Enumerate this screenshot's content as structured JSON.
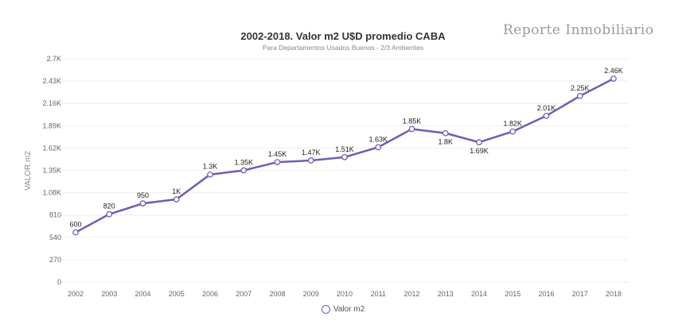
{
  "brand": "Reporte Inmobiliario",
  "chart_data": {
    "type": "line",
    "title": "2002-2018. Valor m2 U$D promedio CABA",
    "subtitle": "Para Departamentos Usados Buenos - 2/3 Ambientes",
    "xlabel": "",
    "ylabel": "VALOR m2",
    "ylim": [
      0,
      2700
    ],
    "yticks": [
      0,
      270,
      540,
      810,
      1080,
      1350,
      1620,
      1890,
      2160,
      2430,
      2700
    ],
    "ytick_labels": [
      "0",
      "270",
      "540",
      "810",
      "1.08K",
      "1.35K",
      "1.62K",
      "1.89K",
      "2.16K",
      "2.43K",
      "2.7K"
    ],
    "grid": true,
    "legend_position": "bottom",
    "categories": [
      "2002",
      "2003",
      "2004",
      "2005",
      "2006",
      "2007",
      "2008",
      "2009",
      "2010",
      "2011",
      "2012",
      "2013",
      "2014",
      "2015",
      "2016",
      "2017",
      "2018"
    ],
    "series": [
      {
        "name": "Valor m2",
        "color": "#6b5fb5",
        "values": [
          600,
          820,
          950,
          1000,
          1300,
          1350,
          1450,
          1470,
          1510,
          1630,
          1850,
          1800,
          1690,
          1820,
          2010,
          2250,
          2460
        ],
        "labels": [
          "600",
          "820",
          "950",
          "1K",
          "1.3K",
          "1.35K",
          "1.45K",
          "1.47K",
          "1.51K",
          "1.63K",
          "1.85K",
          "1.8K",
          "1.69K",
          "1.82K",
          "2.01K",
          "2.25K",
          "2.46K"
        ]
      }
    ]
  }
}
